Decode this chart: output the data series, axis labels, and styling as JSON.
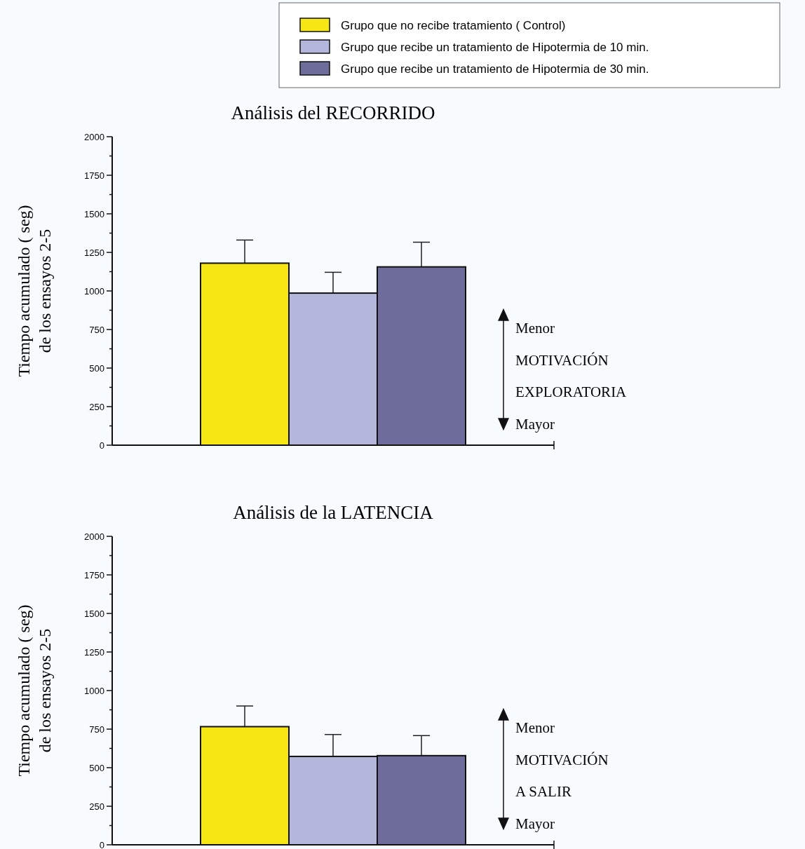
{
  "chart_data": [
    {
      "type": "bar",
      "title": "Análisis del RECORRIDO",
      "ylabel": "Tiempo acumulado ( seg)\nde los ensayos 2-5",
      "categories": [
        null
      ],
      "legend": "top",
      "series": [
        {
          "name": "Grupo que no recibe tratamiento ( Control)",
          "color": "#f5e614",
          "values": [
            1180
          ],
          "errors": [
            150
          ]
        },
        {
          "name": "Grupo que recibe un tratamiento de Hipotermia de 10 min.",
          "color": "#b4b6dc",
          "values": [
            986
          ],
          "errors": [
            135
          ]
        },
        {
          "name": "Grupo que recibe un tratamiento de Hipotermia de 30 min.",
          "color": "#6e6c9a",
          "values": [
            1156
          ],
          "errors": [
            160
          ]
        }
      ],
      "ylim": [
        0,
        2000
      ],
      "yticks": [
        0,
        {
          "value": 125,
          "label": null
        },
        250,
        {
          "value": 375,
          "label": null
        },
        500,
        {
          "value": 625,
          "label": null
        },
        750,
        {
          "value": 875,
          "label": null
        },
        1000,
        {
          "value": 1125,
          "label": null
        },
        1250,
        {
          "value": 1375,
          "label": null
        },
        1500,
        {
          "value": 1625,
          "label": null
        },
        1750,
        {
          "value": 1875,
          "label": null
        },
        2000
      ],
      "annotations": [
        "Menor",
        "MOTIVACIÓN",
        "EXPLORATORIA",
        "Mayor"
      ]
    },
    {
      "type": "bar",
      "title": "Análisis de la LATENCIA",
      "ylabel": "Tiempo acumulado ( seg)\nde los ensayos 2-5",
      "categories": [
        null
      ],
      "series": [
        {
          "color": "#f5e614",
          "values": [
            766
          ],
          "errors": [
            134
          ]
        },
        {
          "color": "#b4b6dc",
          "values": [
            573
          ],
          "errors": [
            142
          ]
        },
        {
          "color": "#6e6c9a",
          "values": [
            578
          ],
          "errors": [
            130
          ]
        }
      ],
      "ylim": [
        0,
        2000
      ],
      "yticks": [
        0,
        {
          "value": 125,
          "label": null
        },
        250,
        {
          "value": 375,
          "label": null
        },
        500,
        {
          "value": 625,
          "label": null
        },
        750,
        {
          "value": 875,
          "label": null
        },
        1000,
        {
          "value": 1125,
          "label": null
        },
        1250,
        {
          "value": 1375,
          "label": null
        },
        1500,
        {
          "value": 1625,
          "label": null
        },
        1750,
        {
          "value": 1875,
          "label": null
        },
        2000
      ],
      "annotations": [
        "Menor",
        "MOTIVACIÓN",
        "A SALIR",
        "Mayor"
      ]
    }
  ]
}
